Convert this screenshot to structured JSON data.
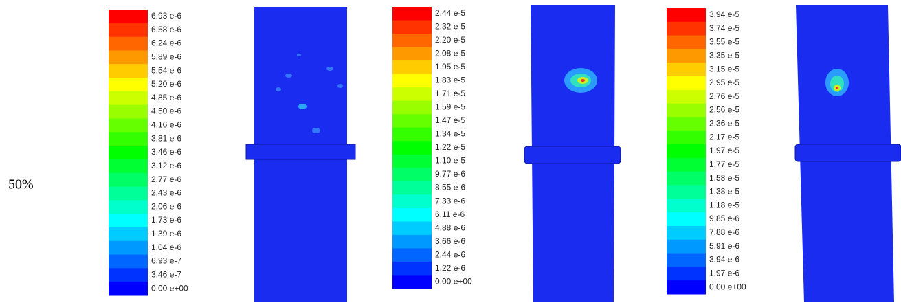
{
  "row_label": "50%",
  "panels": [
    {
      "legend": [
        "6.93 e-6",
        "6.58 e-6",
        "6.24 e-6",
        "5.89 e-6",
        "5.54 e-6",
        "5.20 e-6",
        "4.85 e-6",
        "4.50 e-6",
        "4.16 e-6",
        "3.81 e-6",
        "3.46 e-6",
        "3.12 e-6",
        "2.77 e-6",
        "2.43 e-6",
        "2.06 e-6",
        "1.73 e-6",
        "1.39 e-6",
        "1.04 e-6",
        "6.93 e-7",
        "3.46 e-7",
        "0.00 e+00"
      ]
    },
    {
      "legend": [
        "2.44 e-5",
        "2.32 e-5",
        "2.20 e-5",
        "2.08 e-5",
        "1.95 e-5",
        "1.83 e-5",
        "1.71 e-5",
        "1.59 e-5",
        "1.47 e-5",
        "1.34 e-5",
        "1.22 e-5",
        "1.10 e-5",
        "9.77 e-6",
        "8.55 e-6",
        "7.33 e-6",
        "6.11 e-6",
        "4.88 e-6",
        "3.66 e-6",
        "2.44 e-6",
        "1.22 e-6",
        "0.00 e+00"
      ]
    },
    {
      "legend": [
        "3.94 e-5",
        "3.74 e-5",
        "3.55 e-5",
        "3.35 e-5",
        "3.15 e-5",
        "2.95 e-5",
        "2.76 e-5",
        "2.56 e-5",
        "2.36 e-5",
        "2.17 e-5",
        "1.97 e-5",
        "1.77 e-5",
        "1.58 e-5",
        "1.38 e-5",
        "1.18 e-5",
        "9.85 e-6",
        "7.88 e-6",
        "5.91 e-6",
        "3.94 e-6",
        "1.97 e-6",
        "0.00 e+00"
      ]
    }
  ]
}
